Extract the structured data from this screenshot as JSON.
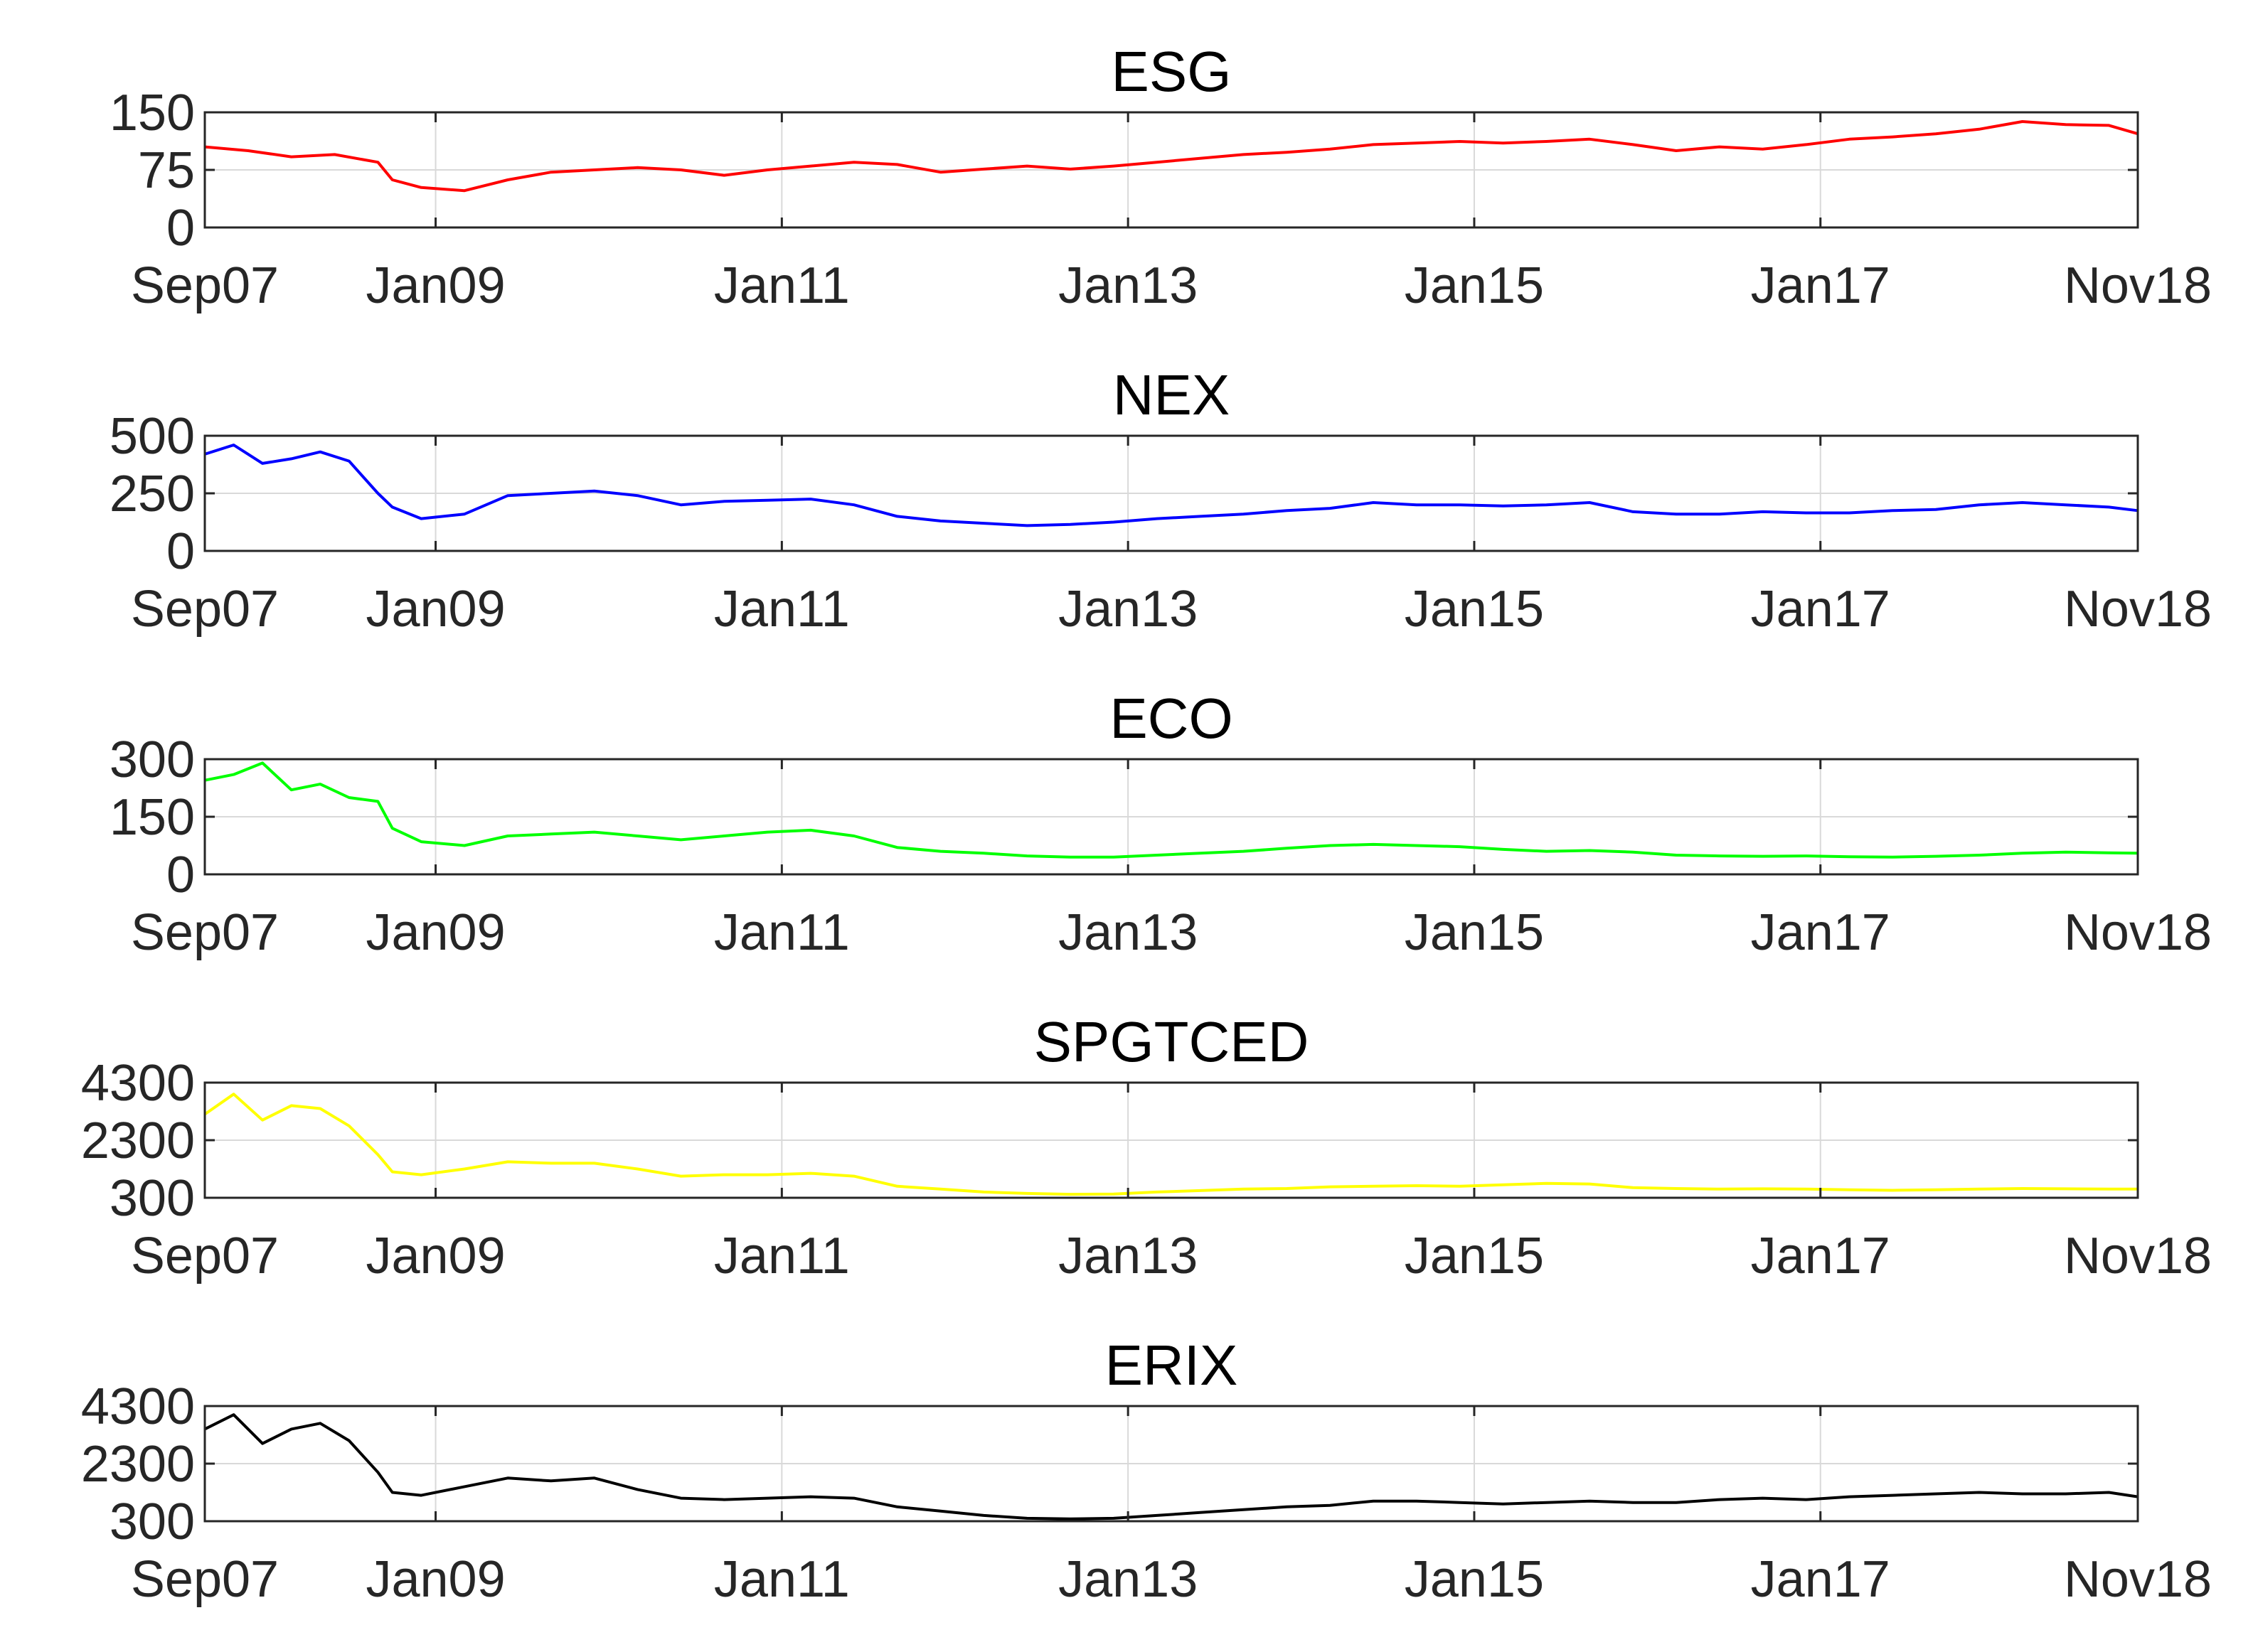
{
  "chart_data": [
    {
      "type": "line",
      "title": "ESG",
      "color": "#ff0000",
      "ylim": [
        0,
        150
      ],
      "yticks": [
        {
          "value": 0,
          "label": "0"
        },
        {
          "value": 75,
          "label": "75"
        },
        {
          "value": 150,
          "label": "150"
        }
      ],
      "xlim": [
        "2007-09",
        "2018-11"
      ],
      "xticks": [
        {
          "date": "2007-09",
          "label": "Sep07"
        },
        {
          "date": "2009-01",
          "label": "Jan09"
        },
        {
          "date": "2011-01",
          "label": "Jan11"
        },
        {
          "date": "2013-01",
          "label": "Jan13"
        },
        {
          "date": "2015-01",
          "label": "Jan15"
        },
        {
          "date": "2017-01",
          "label": "Jan17"
        },
        {
          "date": "2018-11",
          "label": "Nov18"
        }
      ],
      "grid": true,
      "series": [
        {
          "x": [
            "2007-09",
            "2007-12",
            "2008-03",
            "2008-06",
            "2008-09",
            "2008-10",
            "2008-12",
            "2009-03",
            "2009-06",
            "2009-09",
            "2009-12",
            "2010-03",
            "2010-06",
            "2010-09",
            "2010-12",
            "2011-03",
            "2011-06",
            "2011-09",
            "2011-12",
            "2012-03",
            "2012-06",
            "2012-09",
            "2012-12",
            "2013-03",
            "2013-06",
            "2013-09",
            "2013-12",
            "2014-03",
            "2014-06",
            "2014-09",
            "2014-12",
            "2015-03",
            "2015-06",
            "2015-09",
            "2015-12",
            "2016-03",
            "2016-06",
            "2016-09",
            "2016-12",
            "2017-03",
            "2017-06",
            "2017-09",
            "2017-12",
            "2018-03",
            "2018-06",
            "2018-09",
            "2018-11"
          ],
          "y": [
            105,
            100,
            92,
            95,
            85,
            62,
            52,
            48,
            62,
            72,
            75,
            78,
            75,
            68,
            75,
            80,
            85,
            82,
            72,
            76,
            80,
            76,
            80,
            85,
            90,
            95,
            98,
            102,
            108,
            110,
            112,
            110,
            112,
            115,
            108,
            100,
            105,
            102,
            108,
            115,
            118,
            122,
            128,
            138,
            134,
            133,
            122
          ]
        }
      ]
    },
    {
      "type": "line",
      "title": "NEX",
      "color": "#0000ff",
      "ylim": [
        0,
        500
      ],
      "yticks": [
        {
          "value": 0,
          "label": "0"
        },
        {
          "value": 250,
          "label": "250"
        },
        {
          "value": 500,
          "label": "500"
        }
      ],
      "xlim": [
        "2007-09",
        "2018-11"
      ],
      "xticks": [
        {
          "date": "2007-09",
          "label": "Sep07"
        },
        {
          "date": "2009-01",
          "label": "Jan09"
        },
        {
          "date": "2011-01",
          "label": "Jan11"
        },
        {
          "date": "2013-01",
          "label": "Jan13"
        },
        {
          "date": "2015-01",
          "label": "Jan15"
        },
        {
          "date": "2017-01",
          "label": "Jan17"
        },
        {
          "date": "2018-11",
          "label": "Nov18"
        }
      ],
      "grid": true,
      "series": [
        {
          "x": [
            "2007-09",
            "2007-11",
            "2008-01",
            "2008-03",
            "2008-05",
            "2008-07",
            "2008-09",
            "2008-10",
            "2008-12",
            "2009-03",
            "2009-06",
            "2009-09",
            "2009-12",
            "2010-03",
            "2010-06",
            "2010-09",
            "2010-12",
            "2011-03",
            "2011-06",
            "2011-09",
            "2011-12",
            "2012-03",
            "2012-06",
            "2012-09",
            "2012-12",
            "2013-03",
            "2013-06",
            "2013-09",
            "2013-12",
            "2014-03",
            "2014-06",
            "2014-09",
            "2014-12",
            "2015-03",
            "2015-06",
            "2015-09",
            "2015-12",
            "2016-03",
            "2016-06",
            "2016-09",
            "2016-12",
            "2017-03",
            "2017-06",
            "2017-09",
            "2017-12",
            "2018-03",
            "2018-06",
            "2018-09",
            "2018-11"
          ],
          "y": [
            420,
            460,
            380,
            400,
            430,
            390,
            250,
            190,
            140,
            160,
            240,
            250,
            260,
            240,
            200,
            215,
            220,
            225,
            200,
            150,
            130,
            120,
            110,
            115,
            125,
            140,
            150,
            160,
            175,
            185,
            210,
            200,
            200,
            195,
            200,
            210,
            170,
            160,
            160,
            170,
            165,
            165,
            175,
            180,
            200,
            210,
            200,
            190,
            175
          ]
        }
      ]
    },
    {
      "type": "line",
      "title": "ECO",
      "color": "#00ff00",
      "ylim": [
        0,
        300
      ],
      "yticks": [
        {
          "value": 0,
          "label": "0"
        },
        {
          "value": 150,
          "label": "150"
        },
        {
          "value": 300,
          "label": "300"
        }
      ],
      "xlim": [
        "2007-09",
        "2018-11"
      ],
      "xticks": [
        {
          "date": "2007-09",
          "label": "Sep07"
        },
        {
          "date": "2009-01",
          "label": "Jan09"
        },
        {
          "date": "2011-01",
          "label": "Jan11"
        },
        {
          "date": "2013-01",
          "label": "Jan13"
        },
        {
          "date": "2015-01",
          "label": "Jan15"
        },
        {
          "date": "2017-01",
          "label": "Jan17"
        },
        {
          "date": "2018-11",
          "label": "Nov18"
        }
      ],
      "grid": true,
      "series": [
        {
          "x": [
            "2007-09",
            "2007-11",
            "2008-01",
            "2008-03",
            "2008-05",
            "2008-07",
            "2008-09",
            "2008-10",
            "2008-12",
            "2009-03",
            "2009-06",
            "2009-09",
            "2009-12",
            "2010-03",
            "2010-06",
            "2010-09",
            "2010-12",
            "2011-03",
            "2011-06",
            "2011-09",
            "2011-12",
            "2012-03",
            "2012-06",
            "2012-09",
            "2012-12",
            "2013-03",
            "2013-06",
            "2013-09",
            "2013-12",
            "2014-03",
            "2014-06",
            "2014-09",
            "2014-12",
            "2015-03",
            "2015-06",
            "2015-09",
            "2015-12",
            "2016-03",
            "2016-06",
            "2016-09",
            "2016-12",
            "2017-03",
            "2017-06",
            "2017-09",
            "2017-12",
            "2018-03",
            "2018-06",
            "2018-09",
            "2018-11"
          ],
          "y": [
            245,
            260,
            290,
            220,
            235,
            200,
            190,
            120,
            85,
            75,
            100,
            105,
            110,
            100,
            90,
            100,
            110,
            115,
            100,
            70,
            60,
            55,
            48,
            45,
            45,
            50,
            55,
            60,
            68,
            75,
            78,
            75,
            72,
            65,
            60,
            62,
            58,
            50,
            48,
            47,
            48,
            46,
            45,
            47,
            50,
            55,
            58,
            56,
            55
          ]
        }
      ]
    },
    {
      "type": "line",
      "title": "SPGTCED",
      "color": "#ffff00",
      "ylim": [
        300,
        4300
      ],
      "yticks": [
        {
          "value": 300,
          "label": "300"
        },
        {
          "value": 2300,
          "label": "2300"
        },
        {
          "value": 4300,
          "label": "4300"
        }
      ],
      "xlim": [
        "2007-09",
        "2018-11"
      ],
      "xticks": [
        {
          "date": "2007-09",
          "label": "Sep07"
        },
        {
          "date": "2009-01",
          "label": "Jan09"
        },
        {
          "date": "2011-01",
          "label": "Jan11"
        },
        {
          "date": "2013-01",
          "label": "Jan13"
        },
        {
          "date": "2015-01",
          "label": "Jan15"
        },
        {
          "date": "2017-01",
          "label": "Jan17"
        },
        {
          "date": "2018-11",
          "label": "Nov18"
        }
      ],
      "grid": true,
      "series": [
        {
          "x": [
            "2007-09",
            "2007-11",
            "2008-01",
            "2008-03",
            "2008-05",
            "2008-07",
            "2008-09",
            "2008-10",
            "2008-12",
            "2009-03",
            "2009-06",
            "2009-09",
            "2009-12",
            "2010-03",
            "2010-06",
            "2010-09",
            "2010-12",
            "2011-03",
            "2011-06",
            "2011-09",
            "2011-12",
            "2012-03",
            "2012-06",
            "2012-09",
            "2012-12",
            "2013-03",
            "2013-06",
            "2013-09",
            "2013-12",
            "2014-03",
            "2014-06",
            "2014-09",
            "2014-12",
            "2015-03",
            "2015-06",
            "2015-09",
            "2015-12",
            "2016-03",
            "2016-06",
            "2016-09",
            "2016-12",
            "2017-03",
            "2017-06",
            "2017-09",
            "2017-12",
            "2018-03",
            "2018-06",
            "2018-09",
            "2018-11"
          ],
          "y": [
            3200,
            3900,
            3000,
            3500,
            3400,
            2800,
            1800,
            1200,
            1100,
            1300,
            1550,
            1500,
            1500,
            1300,
            1050,
            1100,
            1100,
            1150,
            1050,
            700,
            600,
            500,
            450,
            420,
            430,
            500,
            550,
            600,
            620,
            680,
            700,
            720,
            700,
            750,
            800,
            780,
            650,
            620,
            600,
            610,
            600,
            580,
            560,
            580,
            600,
            620,
            610,
            600,
            600
          ]
        }
      ]
    },
    {
      "type": "line",
      "title": "ERIX",
      "color": "#000000",
      "ylim": [
        300,
        4300
      ],
      "yticks": [
        {
          "value": 300,
          "label": "300"
        },
        {
          "value": 2300,
          "label": "2300"
        },
        {
          "value": 4300,
          "label": "4300"
        }
      ],
      "xlim": [
        "2007-09",
        "2018-11"
      ],
      "xticks": [
        {
          "date": "2007-09",
          "label": "Sep07"
        },
        {
          "date": "2009-01",
          "label": "Jan09"
        },
        {
          "date": "2011-01",
          "label": "Jan11"
        },
        {
          "date": "2013-01",
          "label": "Jan13"
        },
        {
          "date": "2015-01",
          "label": "Jan15"
        },
        {
          "date": "2017-01",
          "label": "Jan17"
        },
        {
          "date": "2018-11",
          "label": "Nov18"
        }
      ],
      "grid": true,
      "series": [
        {
          "x": [
            "2007-09",
            "2007-11",
            "2008-01",
            "2008-03",
            "2008-05",
            "2008-07",
            "2008-09",
            "2008-10",
            "2008-12",
            "2009-03",
            "2009-06",
            "2009-09",
            "2009-12",
            "2010-03",
            "2010-06",
            "2010-09",
            "2010-12",
            "2011-03",
            "2011-06",
            "2011-09",
            "2011-12",
            "2012-03",
            "2012-06",
            "2012-09",
            "2012-12",
            "2013-03",
            "2013-06",
            "2013-09",
            "2013-12",
            "2014-03",
            "2014-06",
            "2014-09",
            "2014-12",
            "2015-03",
            "2015-06",
            "2015-09",
            "2015-12",
            "2016-03",
            "2016-06",
            "2016-09",
            "2016-12",
            "2017-03",
            "2017-06",
            "2017-09",
            "2017-12",
            "2018-03",
            "2018-06",
            "2018-09",
            "2018-11"
          ],
          "y": [
            3500,
            4000,
            3000,
            3500,
            3700,
            3100,
            2000,
            1300,
            1200,
            1500,
            1800,
            1700,
            1800,
            1400,
            1100,
            1050,
            1100,
            1150,
            1100,
            800,
            650,
            500,
            400,
            380,
            400,
            500,
            600,
            700,
            800,
            850,
            1000,
            1000,
            950,
            900,
            950,
            1000,
            950,
            950,
            1050,
            1100,
            1050,
            1150,
            1200,
            1250,
            1300,
            1250,
            1250,
            1300,
            1150
          ]
        }
      ]
    }
  ]
}
